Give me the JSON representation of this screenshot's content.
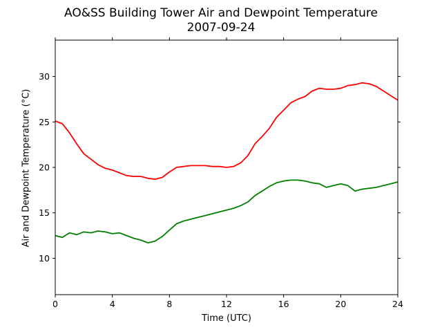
{
  "chart_data": {
    "type": "line",
    "title": "AO&SS Building Tower Air and Dewpoint Temperature",
    "subtitle": "2007-09-24",
    "xlabel": "Time (UTC)",
    "ylabel": "Air and Dewpoint Temperature (°C)",
    "xlim": [
      0,
      24
    ],
    "ylim": [
      6,
      34
    ],
    "xticks": [
      "0",
      "4",
      "8",
      "12",
      "16",
      "20",
      "24"
    ],
    "yticks": [
      "10",
      "15",
      "20",
      "25",
      "30"
    ],
    "grid": false,
    "series": [
      {
        "color": "#ff0000",
        "x": [
          0,
          0.5,
          1,
          1.5,
          2,
          2.5,
          3,
          3.5,
          4,
          4.5,
          5,
          5.5,
          6,
          6.5,
          7,
          7.5,
          8,
          8.5,
          9,
          9.5,
          10,
          10.5,
          11,
          11.5,
          12,
          12.5,
          13,
          13.5,
          14,
          14.5,
          15,
          15.5,
          16,
          16.5,
          17,
          17.5,
          18,
          18.5,
          19,
          19.5,
          20,
          20.5,
          21,
          21.5,
          22,
          22.5,
          23,
          23.5,
          24
        ],
        "y": [
          25.1,
          24.8,
          23.8,
          22.6,
          21.5,
          20.9,
          20.3,
          19.9,
          19.7,
          19.4,
          19.1,
          19.0,
          19.0,
          18.8,
          18.7,
          18.9,
          19.5,
          20.0,
          20.1,
          20.2,
          20.2,
          20.2,
          20.1,
          20.1,
          20.0,
          20.1,
          20.5,
          21.3,
          22.6,
          23.4,
          24.3,
          25.5,
          26.3,
          27.1,
          27.5,
          27.8,
          28.4,
          28.7,
          28.6,
          28.6,
          28.7,
          29.0,
          29.1,
          29.3,
          29.2,
          28.9,
          28.4,
          27.9,
          27.4
        ]
      },
      {
        "color": "#008000",
        "x": [
          0,
          0.5,
          1,
          1.5,
          2,
          2.5,
          3,
          3.5,
          4,
          4.5,
          5,
          5.5,
          6,
          6.5,
          7,
          7.5,
          8,
          8.5,
          9,
          9.5,
          10,
          10.5,
          11,
          11.5,
          12,
          12.5,
          13,
          13.5,
          14,
          14.5,
          15,
          15.5,
          16,
          16.5,
          17,
          17.5,
          18,
          18.5,
          19,
          19.5,
          20,
          20.5,
          21,
          21.5,
          22,
          22.5,
          23,
          23.5,
          24
        ],
        "y": [
          12.5,
          12.3,
          12.8,
          12.6,
          12.9,
          12.8,
          13.0,
          12.9,
          12.7,
          12.8,
          12.5,
          12.2,
          12.0,
          11.7,
          11.9,
          12.4,
          13.1,
          13.8,
          14.1,
          14.3,
          14.5,
          14.7,
          14.9,
          15.1,
          15.3,
          15.5,
          15.8,
          16.2,
          16.9,
          17.4,
          17.9,
          18.3,
          18.5,
          18.6,
          18.6,
          18.5,
          18.3,
          18.2,
          17.8,
          18.0,
          18.2,
          18.0,
          17.4,
          17.6,
          17.7,
          17.8,
          18.0,
          18.2,
          18.4
        ]
      }
    ]
  }
}
